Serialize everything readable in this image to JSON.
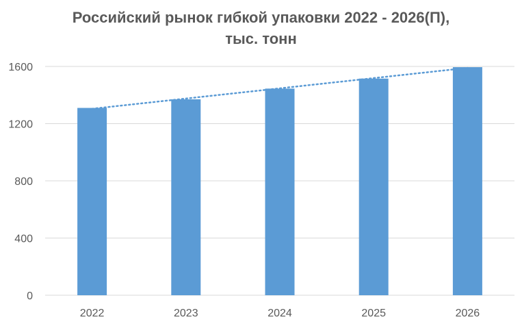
{
  "chart_data": {
    "type": "bar",
    "title_line1": "Российский рынок гибкой упаковки 2022 - 2026(П),",
    "title_line2": "тыс. тонн",
    "categories": [
      "2022",
      "2023",
      "2024",
      "2025",
      "2026"
    ],
    "values": [
      1310,
      1370,
      1445,
      1515,
      1595
    ],
    "ylim": [
      0,
      1600
    ],
    "yticks": [
      "0",
      "400",
      "800",
      "1200",
      "1600"
    ],
    "grid": true,
    "trendline": "linear, dotted",
    "bar_color": "#5B9BD5",
    "trend_color": "#5B9BD5",
    "grid_color": "#D9D9D9"
  }
}
